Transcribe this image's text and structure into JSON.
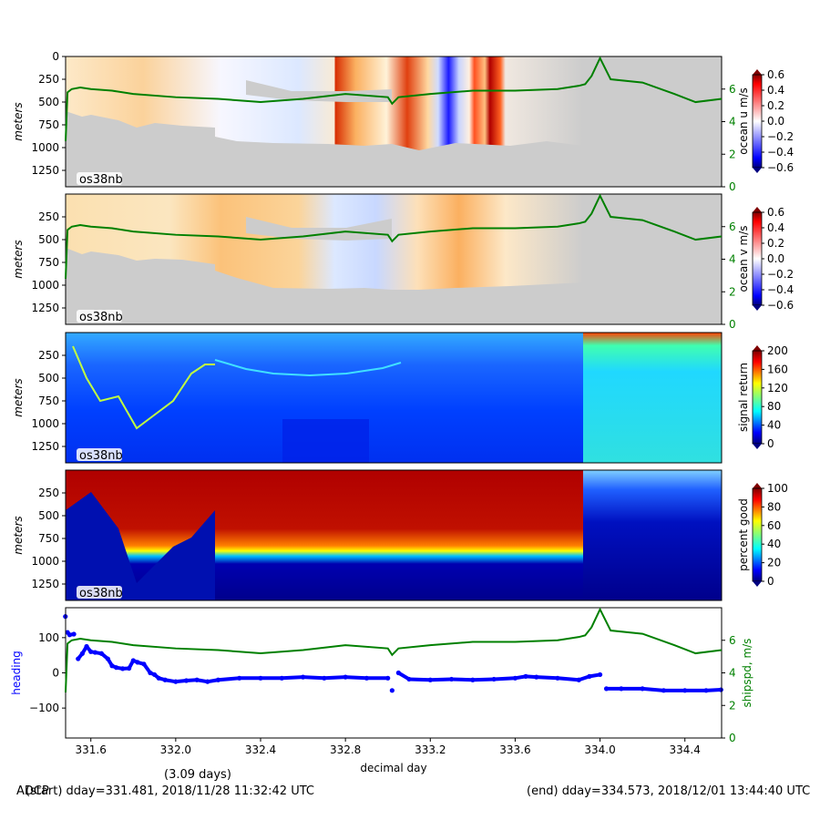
{
  "chart_data": {
    "type": "adcp_summary",
    "xlabel": "decimal day",
    "xlim": [
      331.481,
      334.573
    ],
    "xticks": [
      331.6,
      332.0,
      332.4,
      332.8,
      333.2,
      333.6,
      334.0,
      334.4
    ],
    "xtick_labels": [
      "331.6",
      "332.0",
      "332.4",
      "332.8",
      "333.2",
      "333.6",
      "334.0",
      "334.4"
    ],
    "depth_ylabel": "meters",
    "depth_ylim": [
      1430,
      0
    ],
    "depth_ticks_top": [
      0,
      250,
      500,
      750,
      1000,
      1250
    ],
    "depth_ticks_other": [
      250,
      500,
      750,
      1000,
      1250
    ],
    "instrument": "os38nb",
    "shipspd_ticks": [
      0,
      2,
      4,
      6
    ],
    "shipspd_ylim": [
      0,
      8
    ],
    "shipspd_color": "#008000",
    "heading_color": "#0000ff",
    "panels": [
      {
        "id": "u",
        "colorbar_label": "ocean u m/s",
        "clim": [
          -0.6,
          0.6
        ],
        "cbar_ticks": [
          "0.6",
          "0.4",
          "0.2",
          "0.0",
          "−0.2",
          "−0.4",
          "−0.6"
        ],
        "cmap": "bwr"
      },
      {
        "id": "v",
        "colorbar_label": "ocean v m/s",
        "clim": [
          -0.6,
          0.6
        ],
        "cbar_ticks": [
          "0.6",
          "0.4",
          "0.2",
          "0.0",
          "−0.2",
          "−0.4",
          "−0.6"
        ],
        "cmap": "bwr"
      },
      {
        "id": "amp",
        "colorbar_label": "signal return",
        "clim": [
          0,
          200
        ],
        "cbar_ticks": [
          "200",
          "160",
          "120",
          "80",
          "40",
          "0"
        ],
        "cmap": "jet"
      },
      {
        "id": "pg",
        "colorbar_label": "percent good",
        "clim": [
          0,
          100
        ],
        "cbar_ticks": [
          "100",
          "80",
          "60",
          "40",
          "20",
          "0"
        ],
        "cmap": "jet"
      }
    ],
    "bottom_panel": {
      "left_ylabel": "heading",
      "right_ylabel": "shipspd, m/s",
      "heading_ylim": [
        -185,
        185
      ],
      "heading_ticks": [
        "100",
        "0",
        "−100"
      ],
      "heading_tick_values": [
        100,
        0,
        -100
      ],
      "shipspd_ticks": [
        "0",
        "2",
        "4",
        "6"
      ]
    },
    "shipspd_series": {
      "x": [
        331.481,
        331.49,
        331.51,
        331.55,
        331.6,
        331.7,
        331.8,
        332.0,
        332.2,
        332.4,
        332.6,
        332.8,
        333.0,
        333.02,
        333.05,
        333.2,
        333.4,
        333.6,
        333.8,
        333.9,
        333.93,
        333.96,
        334.0,
        334.05,
        334.2,
        334.35,
        334.45,
        334.573
      ],
      "y": [
        2.8,
        5.8,
        6.0,
        6.1,
        6.0,
        5.9,
        5.7,
        5.5,
        5.4,
        5.2,
        5.4,
        5.7,
        5.5,
        5.1,
        5.5,
        5.7,
        5.9,
        5.9,
        6.0,
        6.2,
        6.3,
        6.8,
        7.9,
        6.6,
        6.4,
        5.7,
        5.2,
        5.4
      ]
    },
    "heading_series": {
      "x": [
        331.48,
        331.49,
        331.5,
        331.52,
        331.54,
        331.56,
        331.58,
        331.6,
        331.62,
        331.65,
        331.68,
        331.7,
        331.72,
        331.75,
        331.78,
        331.8,
        331.82,
        331.85,
        331.88,
        331.9,
        331.92,
        331.95,
        332.0,
        332.05,
        332.1,
        332.15,
        332.2,
        332.3,
        332.4,
        332.5,
        332.6,
        332.7,
        332.8,
        332.9,
        333.0,
        333.02,
        333.05,
        333.1,
        333.2,
        333.3,
        333.4,
        333.5,
        333.6,
        333.65,
        333.7,
        333.8,
        333.9,
        333.95,
        334.0,
        334.03,
        334.1,
        334.2,
        334.3,
        334.4,
        334.5,
        334.57
      ],
      "y": [
        160,
        115,
        108,
        110,
        40,
        55,
        75,
        60,
        58,
        55,
        40,
        20,
        15,
        12,
        13,
        35,
        30,
        25,
        0,
        -5,
        -15,
        -20,
        -25,
        -22,
        -20,
        -25,
        -20,
        -15,
        -15,
        -15,
        -12,
        -15,
        -12,
        -15,
        -15,
        -50,
        0,
        -18,
        -20,
        -18,
        -20,
        -18,
        -15,
        -10,
        -12,
        -15,
        -20,
        -10,
        -5,
        -45,
        -45,
        -45,
        -50,
        -50,
        -50,
        -48
      ]
    }
  },
  "footer": {
    "left": "ADCP",
    "start": "(start) dday=331.481,  2018/11/28 11:32:42 UTC",
    "duration": "(3.09 days)",
    "end": "(end) dday=334.573,  2018/12/01 13:44:40 UTC"
  }
}
